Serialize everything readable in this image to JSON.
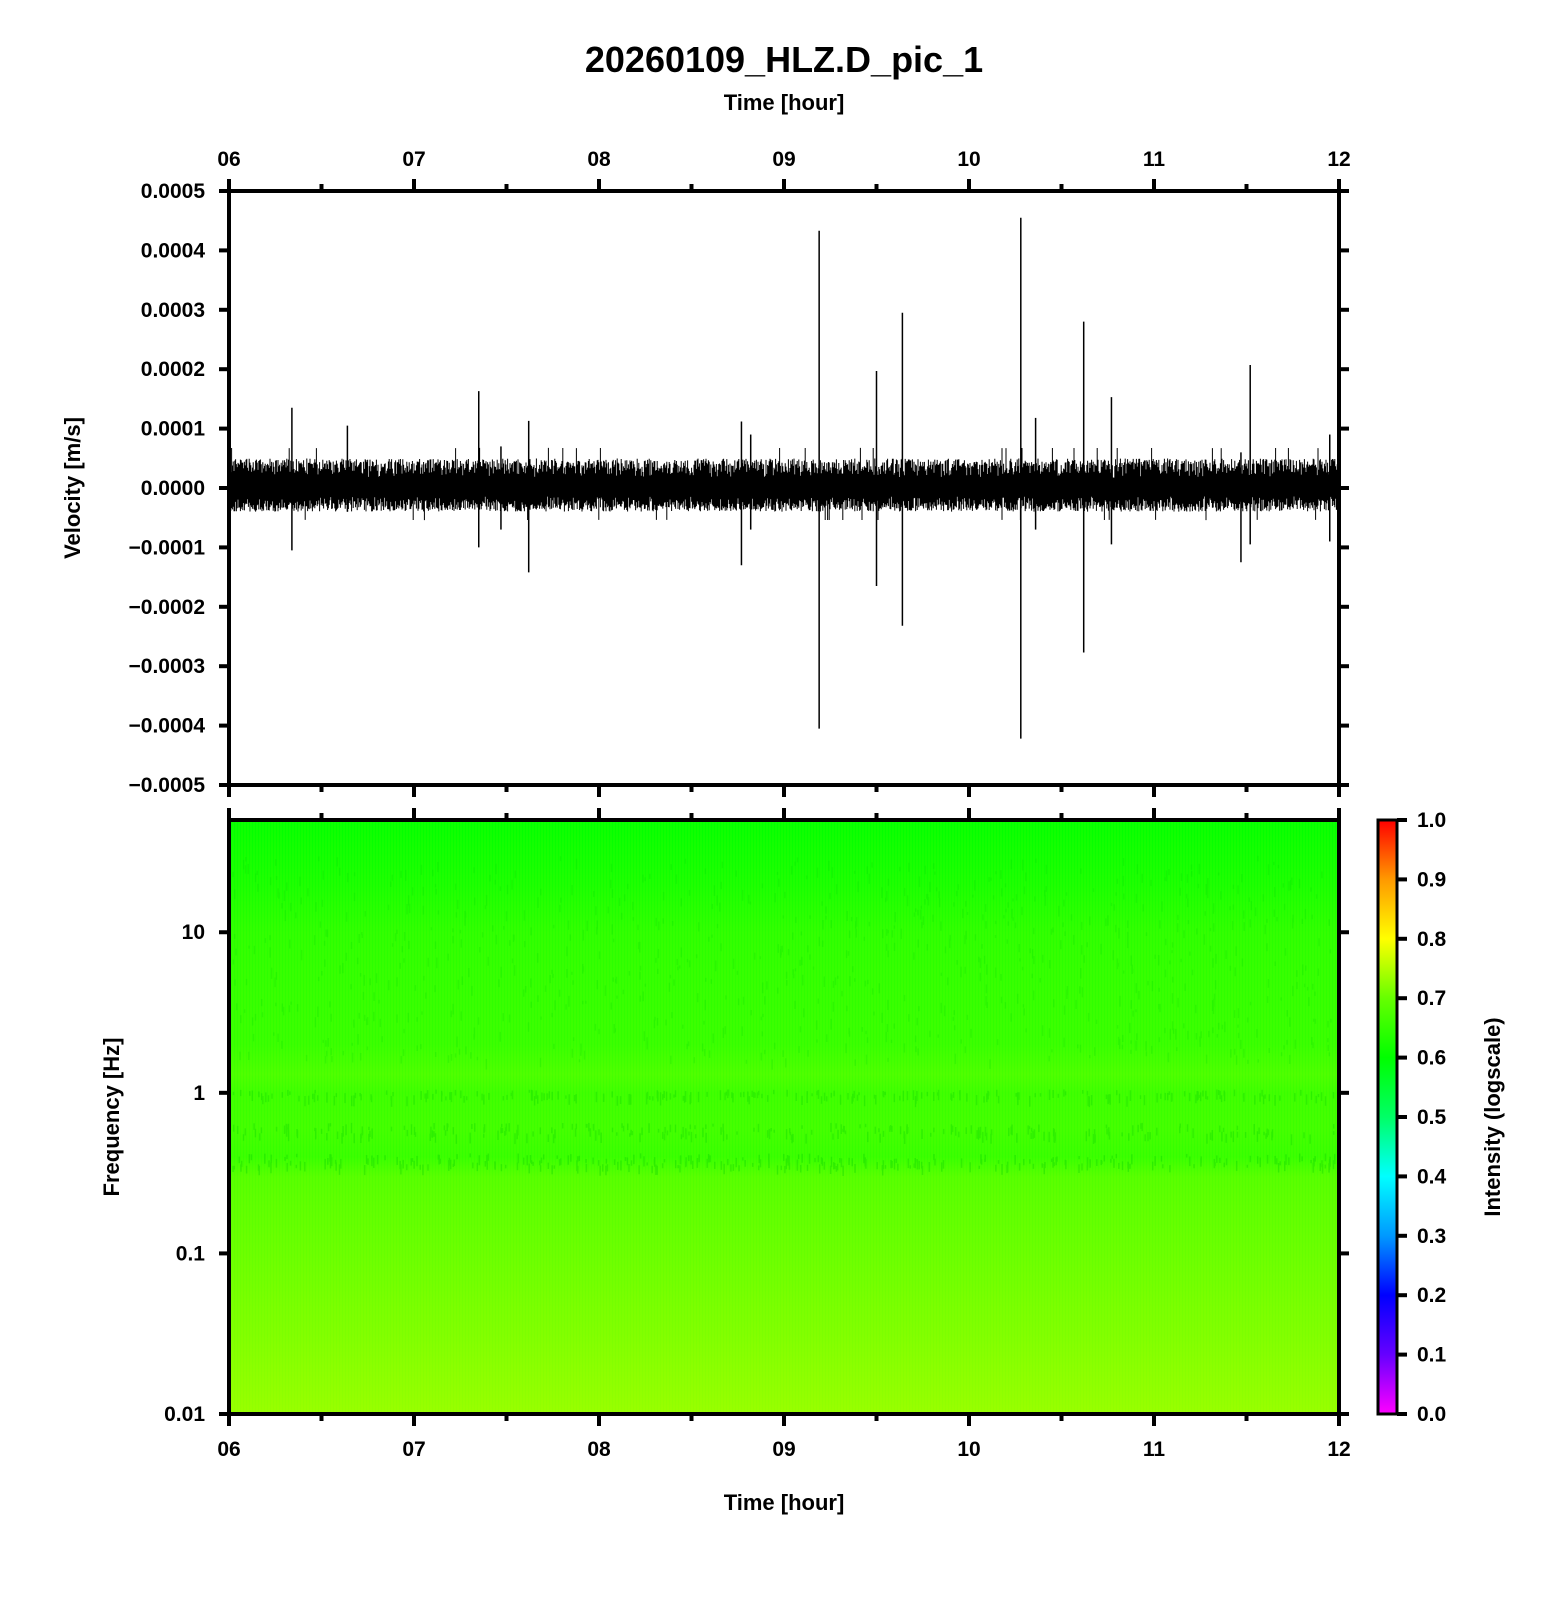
{
  "chart_data": [
    {
      "type": "line",
      "title": "20260109_HLZ.D_pic_1",
      "top_xlabel": "Time [hour]",
      "ylabel": "Velocity [m/s]",
      "xlim": [
        6,
        12
      ],
      "ylim": [
        -0.0005,
        0.0005
      ],
      "x_ticks": [
        "06",
        "07",
        "08",
        "09",
        "10",
        "11",
        "12"
      ],
      "y_ticks": [
        "0.0005",
        "0.0004",
        "0.0003",
        "0.0002",
        "0.0001",
        "0.0000",
        "−0.0001",
        "−0.0002",
        "−0.0003",
        "−0.0004",
        "−0.0005"
      ],
      "y_tick_values": [
        0.0005,
        0.0004,
        0.0003,
        0.0002,
        0.0001,
        0,
        -0.0001,
        -0.0002,
        -0.0003,
        -0.0004,
        -0.0005
      ],
      "noise_band": [
        -4e-05,
        5e-05
      ],
      "spikes": [
        {
          "x": 6.34,
          "max": 0.000135,
          "min": -0.000105
        },
        {
          "x": 6.64,
          "max": 0.000105,
          "min": -4e-05
        },
        {
          "x": 7.35,
          "max": 0.000163,
          "min": -0.0001
        },
        {
          "x": 7.47,
          "max": 7e-05,
          "min": -7e-05
        },
        {
          "x": 7.62,
          "max": 0.000113,
          "min": -0.000142
        },
        {
          "x": 8.77,
          "max": 0.000112,
          "min": -0.00013
        },
        {
          "x": 8.82,
          "max": 9e-05,
          "min": -7e-05
        },
        {
          "x": 9.19,
          "max": 0.000433,
          "min": -0.000405
        },
        {
          "x": 9.5,
          "max": 0.000197,
          "min": -0.000165
        },
        {
          "x": 9.64,
          "max": 0.000295,
          "min": -0.000232
        },
        {
          "x": 10.28,
          "max": 0.000455,
          "min": -0.000422
        },
        {
          "x": 10.36,
          "max": 0.000118,
          "min": -7e-05
        },
        {
          "x": 10.62,
          "max": 0.00028,
          "min": -0.000277
        },
        {
          "x": 10.77,
          "max": 0.000153,
          "min": -9.5e-05
        },
        {
          "x": 11.47,
          "max": 6e-05,
          "min": -0.000125
        },
        {
          "x": 11.52,
          "max": 0.000207,
          "min": -9.5e-05
        },
        {
          "x": 11.95,
          "max": 9e-05,
          "min": -9e-05
        }
      ]
    },
    {
      "type": "heatmap",
      "xlabel": "Time [hour]",
      "ylabel": "Frequency [Hz]",
      "xlim": [
        6,
        12
      ],
      "ylim": [
        0.01,
        50
      ],
      "yscale": "log",
      "x_ticks": [
        "06",
        "07",
        "08",
        "09",
        "10",
        "11",
        "12"
      ],
      "y_ticks": [
        "10",
        "1",
        "0.1",
        "0.01"
      ],
      "y_tick_values": [
        10,
        1,
        0.1,
        0.01
      ],
      "intensity_by_frequency": [
        {
          "freq": 50,
          "intensity": 0.6
        },
        {
          "freq": 20,
          "intensity": 0.62
        },
        {
          "freq": 10,
          "intensity": 0.64
        },
        {
          "freq": 5,
          "intensity": 0.645
        },
        {
          "freq": 2,
          "intensity": 0.65
        },
        {
          "freq": 1.3,
          "intensity": 0.67
        },
        {
          "freq": 1,
          "intensity": 0.655
        },
        {
          "freq": 0.6,
          "intensity": 0.66
        },
        {
          "freq": 0.4,
          "intensity": 0.65
        },
        {
          "freq": 0.3,
          "intensity": 0.68
        },
        {
          "freq": 0.1,
          "intensity": 0.7
        },
        {
          "freq": 0.03,
          "intensity": 0.715
        },
        {
          "freq": 0.01,
          "intensity": 0.73
        }
      ],
      "colorbar": {
        "label": "Intensity (logscale)",
        "range": [
          0.0,
          1.0
        ],
        "ticks": [
          "1.0",
          "0.9",
          "0.8",
          "0.7",
          "0.6",
          "0.5",
          "0.4",
          "0.3",
          "0.2",
          "0.1",
          "0.0"
        ],
        "tick_values": [
          1.0,
          0.9,
          0.8,
          0.7,
          0.6,
          0.5,
          0.4,
          0.3,
          0.2,
          0.1,
          0.0
        ],
        "colors": [
          "#ff00ff",
          "#6600ff",
          "#0000ff",
          "#0099ff",
          "#00ffff",
          "#00ff66",
          "#00ff00",
          "#66ff00",
          "#ffff00",
          "#ff9900",
          "#ff0000"
        ]
      }
    }
  ]
}
